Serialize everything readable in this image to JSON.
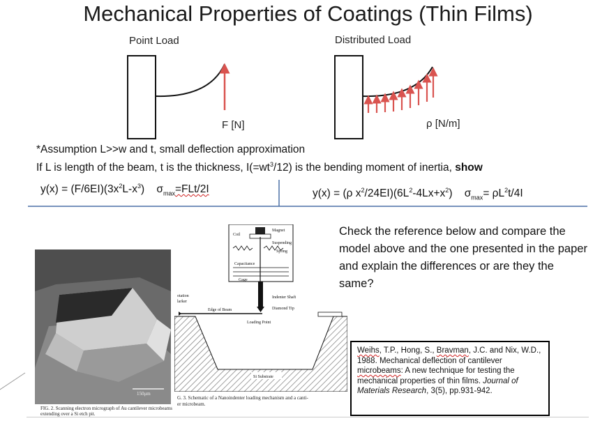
{
  "title": "Mechanical Properties of Coatings (Thin Films)",
  "point_load": {
    "label": "Point Load",
    "force": "F [N]"
  },
  "distributed_load": {
    "label": "Distributed Load",
    "force": "ρ [N/m]"
  },
  "assumption": "*Assumption L>>w and t, small deflection approximation",
  "definition": {
    "prefix": "If L is length of the beam, t is the thickness, I(=wt",
    "exp": "3",
    "mid": "/12) is the bending moment of inertia, ",
    "bold": "show"
  },
  "eq_point": {
    "y1": "y(x) = (F/6EI)(3x",
    "y1_exp": "2",
    "y1_b": "L-x",
    "y1_exp2": "3",
    "y1_c": ")",
    "sigma": "σ",
    "sigma_sub": "max",
    "sigma_val": "=FLt/2I"
  },
  "eq_dist": {
    "y1": "y(x) = (ρ x",
    "exp1": "2",
    "mid1": "/24EI)(6L",
    "exp2": "2",
    "mid2": "-4Lx+x",
    "exp3": "2",
    "end": ")",
    "sigma": "σ",
    "sigma_sub": "max",
    "sigma_val": "= ρL",
    "sigma_exp": "2",
    "sigma_end": "t/4I"
  },
  "question": "Check the reference below and compare the model above and the one presented in the paper and explain the differences or are they the same?",
  "reference": {
    "authors_a": "Weihs",
    "authors_b": ", T.P., Hong, S., ",
    "authors_c": "Bravman",
    "authors_d": ", J.C. and Nix, W.D., 1988. Mechanical deflection of cantilever ",
    "authors_e": "microbeams",
    "authors_f": ": A new technique for testing the mechanical properties of thin films. ",
    "journal": "Journal of Materials Research",
    "tail": ", 3(5), pp.931-942."
  },
  "figure1": {
    "scale": "150μm",
    "caption_line1": "FIG. 2. Scanning electron micrograph of Au cantilever microbeams",
    "caption_line2": "extending over a Si etch pit."
  },
  "figure3": {
    "labels": {
      "magnet": "Magnet",
      "coil": "Coil",
      "suspending": "Suspending",
      "spring": "Spring",
      "capacitance": "Capacitance",
      "gage": "Gage",
      "indenter_shaft": "Indenter Shaft",
      "diamond_tip": "Diamond Tip",
      "edge_of_beam": "Edge of Beam",
      "loading_point": "Loading Point",
      "rotation_marker_a": "otation",
      "rotation_marker_b": "larker",
      "substrate": "Si Substrate"
    },
    "caption_line1": "G. 3. Schematic of a Nanoindenter loading mechanism and a canti-",
    "caption_line2": "er microbeam."
  },
  "colors": {
    "arrow": "#d9534f",
    "divider": "#4a6fa5"
  }
}
